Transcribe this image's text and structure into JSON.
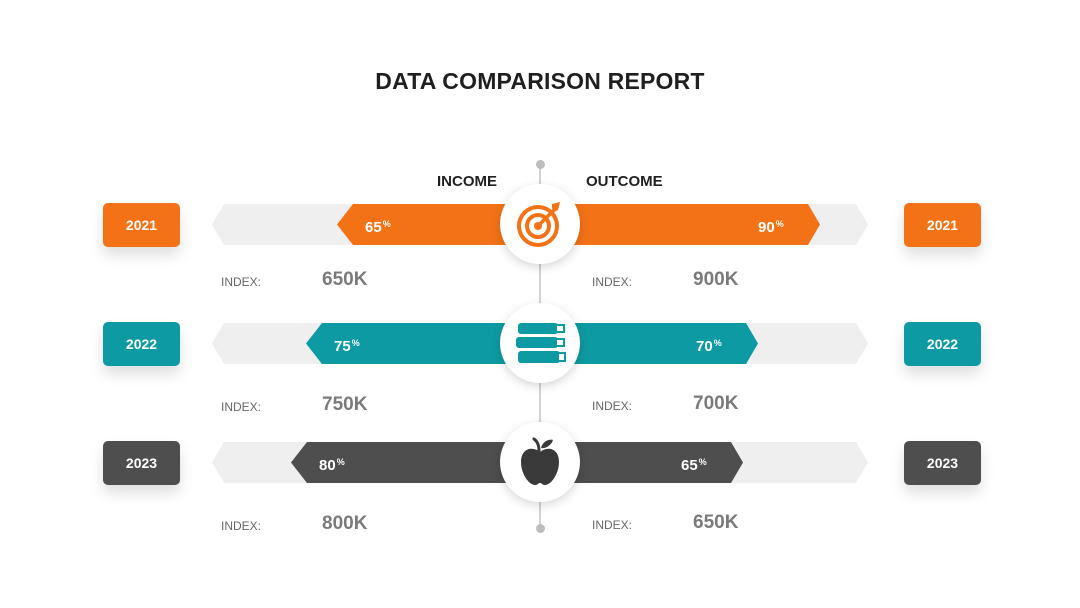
{
  "title": "DATA COMPARISON REPORT",
  "columns": {
    "left": "INCOME",
    "right": "OUTCOME"
  },
  "index_label": "INDEX:",
  "colors": {
    "orange": "#F47216",
    "teal": "#0E9AA2",
    "dark": "#4E4E4E",
    "track": "#EFEFEF"
  },
  "rows": [
    {
      "year": "2021",
      "income_pct": "65",
      "outcome_pct": "90",
      "income_index": "650K",
      "outcome_index": "900K",
      "color": "#F47216",
      "icon": "target-icon"
    },
    {
      "year": "2022",
      "income_pct": "75",
      "outcome_pct": "70",
      "income_index": "750K",
      "outcome_index": "700K",
      "color": "#0E9AA2",
      "icon": "books-icon"
    },
    {
      "year": "2023",
      "income_pct": "80",
      "outcome_pct": "65",
      "income_index": "800K",
      "outcome_index": "650K",
      "color": "#4E4E4E",
      "icon": "apple-icon"
    }
  ],
  "chart_data": {
    "type": "bar",
    "title": "DATA COMPARISON REPORT",
    "categories": [
      "2021",
      "2022",
      "2023"
    ],
    "series": [
      {
        "name": "INCOME",
        "values": [
          65,
          75,
          80
        ],
        "unit": "%",
        "index": [
          "650K",
          "750K",
          "800K"
        ]
      },
      {
        "name": "OUTCOME",
        "values": [
          90,
          70,
          65
        ],
        "unit": "%",
        "index": [
          "900K",
          "700K",
          "650K"
        ]
      }
    ],
    "ylim": [
      0,
      100
    ]
  }
}
